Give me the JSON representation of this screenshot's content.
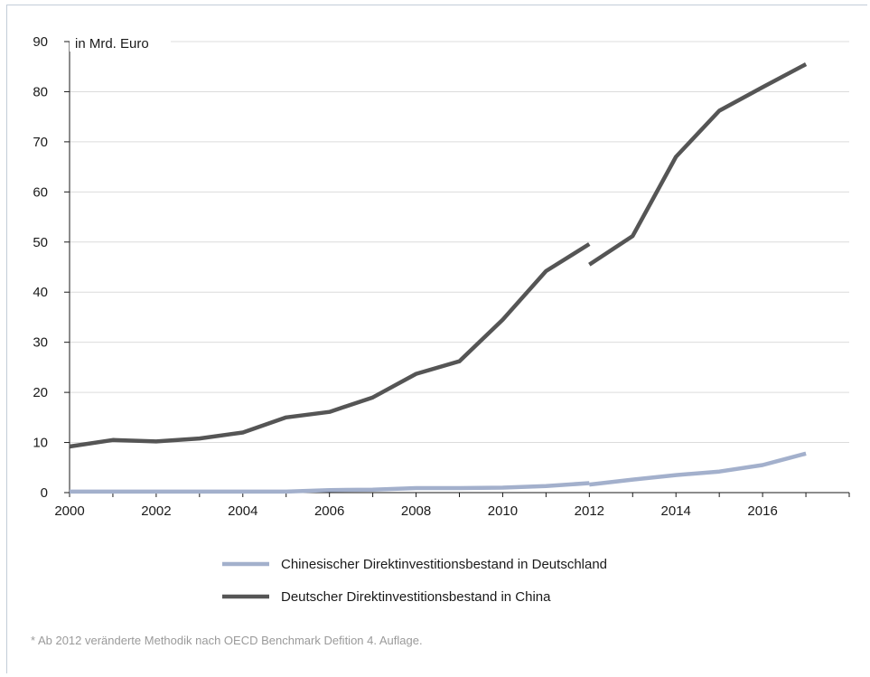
{
  "chart_data": {
    "type": "line",
    "title": "",
    "ylabel": "in Mrd. Euro",
    "xlabel": "",
    "xlim": [
      2000,
      2018
    ],
    "ylim": [
      0,
      90
    ],
    "x_ticks": [
      "2000",
      "2002",
      "2004",
      "2006",
      "2008",
      "2010",
      "2012",
      "2014",
      "2016"
    ],
    "y_ticks": [
      "0",
      "10",
      "20",
      "30",
      "40",
      "50",
      "60",
      "70",
      "80",
      "90"
    ],
    "grid": true,
    "legend_position": "bottom-center",
    "series": [
      {
        "name": "Chinesischer Direktinvestitionsbestand in Deutschland",
        "color": "#a3b0cc",
        "segments": [
          [
            [
              2000,
              0.2
            ],
            [
              2001,
              0.2
            ],
            [
              2002,
              0.2
            ],
            [
              2003,
              0.2
            ],
            [
              2004,
              0.2
            ],
            [
              2005,
              0.2
            ],
            [
              2006,
              0.5
            ],
            [
              2007,
              0.6
            ],
            [
              2008,
              0.9
            ],
            [
              2009,
              0.9
            ],
            [
              2010,
              1.0
            ],
            [
              2011,
              1.3
            ],
            [
              2012,
              1.9
            ]
          ],
          [
            [
              2012,
              1.6
            ],
            [
              2013,
              2.6
            ],
            [
              2014,
              3.5
            ],
            [
              2015,
              4.2
            ],
            [
              2016,
              5.5
            ],
            [
              2017,
              7.8
            ]
          ]
        ]
      },
      {
        "name": "Deutscher Direktinvestitionsbestand in China",
        "color": "#555555",
        "segments": [
          [
            [
              2000,
              9.2
            ],
            [
              2001,
              10.5
            ],
            [
              2002,
              10.2
            ],
            [
              2003,
              10.8
            ],
            [
              2004,
              12.0
            ],
            [
              2005,
              15.0
            ],
            [
              2006,
              16.1
            ],
            [
              2007,
              19.0
            ],
            [
              2008,
              23.7
            ],
            [
              2009,
              26.2
            ],
            [
              2010,
              34.5
            ],
            [
              2011,
              44.2
            ],
            [
              2012,
              49.6
            ]
          ],
          [
            [
              2012,
              45.5
            ],
            [
              2013,
              51.2
            ],
            [
              2014,
              67.0
            ],
            [
              2015,
              76.2
            ],
            [
              2016,
              80.9
            ],
            [
              2017,
              85.5
            ]
          ]
        ]
      }
    ],
    "footnote": "* Ab 2012 veränderte Methodik nach OECD Benchmark Defition 4. Auflage."
  }
}
